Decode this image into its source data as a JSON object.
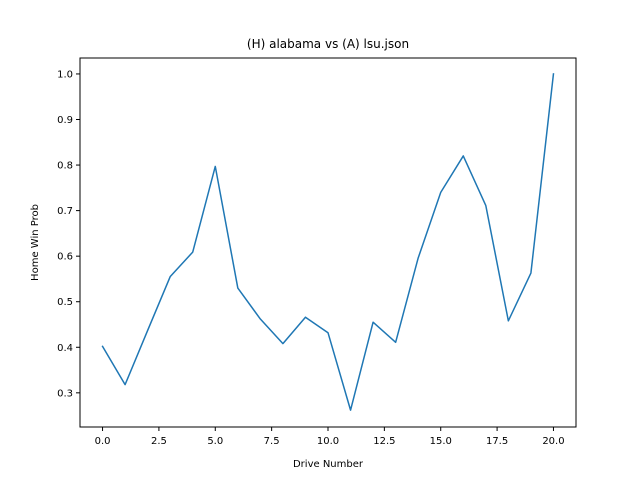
{
  "chart_data": {
    "type": "line",
    "title": "(H) alabama vs (A) lsu.json",
    "xlabel": "Drive Number",
    "ylabel": "Home Win Prob",
    "xlim": [
      -1.0,
      21.0
    ],
    "ylim": [
      0.225,
      1.035
    ],
    "xticks": [
      0.0,
      2.5,
      5.0,
      7.5,
      10.0,
      12.5,
      15.0,
      17.5,
      20.0
    ],
    "xtick_labels": [
      "0.0",
      "2.5",
      "5.0",
      "7.5",
      "10.0",
      "12.5",
      "15.0",
      "17.5",
      "20.0"
    ],
    "yticks": [
      0.3,
      0.4,
      0.5,
      0.6,
      0.7,
      0.8,
      0.9,
      1.0
    ],
    "ytick_labels": [
      "0.3",
      "0.4",
      "0.5",
      "0.6",
      "0.7",
      "0.8",
      "0.9",
      "1.0"
    ],
    "grid": false,
    "series": [
      {
        "color": "#1f77b4",
        "x": [
          0,
          1,
          2,
          3,
          4,
          5,
          6,
          7,
          8,
          9,
          10,
          11,
          12,
          13,
          14,
          15,
          16,
          17,
          18,
          19,
          20
        ],
        "y": [
          0.402,
          0.318,
          0.437,
          0.555,
          0.609,
          0.797,
          0.53,
          0.462,
          0.408,
          0.466,
          0.432,
          0.262,
          0.455,
          0.411,
          0.596,
          0.74,
          0.82,
          0.711,
          0.458,
          0.563,
          1.0
        ]
      }
    ]
  }
}
